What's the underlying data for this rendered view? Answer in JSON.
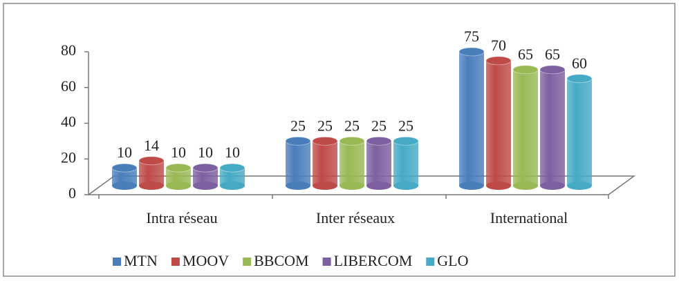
{
  "chart_data": {
    "type": "bar",
    "categories": [
      "Intra réseau",
      "Inter réseaux",
      "International"
    ],
    "series": [
      {
        "name": "MTN",
        "color": "#4a7ebb",
        "values": [
          10,
          25,
          75
        ]
      },
      {
        "name": "MOOV",
        "color": "#be4b48",
        "values": [
          14,
          25,
          70
        ]
      },
      {
        "name": "BBCOM",
        "color": "#98b954",
        "values": [
          10,
          25,
          65
        ]
      },
      {
        "name": "LIBERCOM",
        "color": "#7d60a0",
        "values": [
          10,
          25,
          65
        ]
      },
      {
        "name": "GLO",
        "color": "#46aac5",
        "values": [
          10,
          25,
          60
        ]
      }
    ],
    "ylim": [
      0,
      80
    ],
    "yticks": [
      0,
      20,
      40,
      60,
      80
    ],
    "legend": "bottom"
  }
}
